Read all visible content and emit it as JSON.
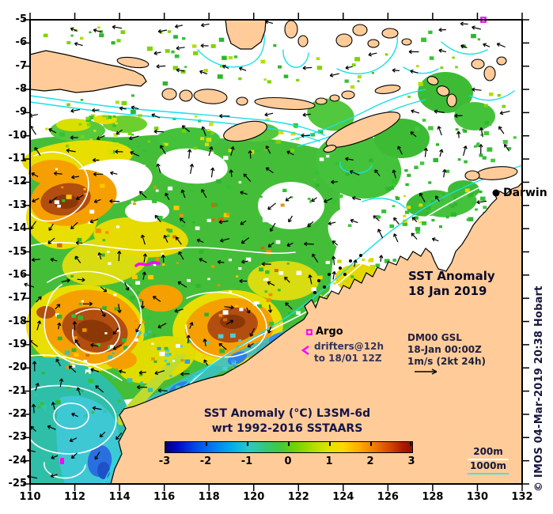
{
  "annotations": {
    "city": "Darwin",
    "title_line1": "SST Anomaly",
    "title_line2": "18 Jan 2019",
    "model_line1": "DM00 GSL",
    "model_line2": "18-Jan 00:00Z",
    "model_line3": "1m/s (2kt 24h)",
    "argo_label": "Argo",
    "drifters_line1": "drifters@12h",
    "drifters_line2": "to 18/01 12Z",
    "depth_200": "200m",
    "depth_1000": "1000m",
    "copyright": "© IMOS 04-Mar-2019 20:38 Hobart"
  },
  "colorbar": {
    "title": "SST Anomaly (°C) L3SM-6d",
    "subtitle": "wrt 1992-2016 SSTAARS",
    "tick_labels": [
      "-3",
      "-2",
      "-1",
      "0",
      "1",
      "2",
      "3"
    ],
    "min": -3,
    "max": 3,
    "units": "°C"
  },
  "axes": {
    "lat_labels": [
      "-5",
      "-6",
      "-7",
      "-8",
      "-9",
      "-10",
      "-11",
      "-12",
      "-13",
      "-14",
      "-15",
      "-16",
      "-17",
      "-18",
      "-19",
      "-20",
      "-21",
      "-22",
      "-23",
      "-24",
      "-25"
    ],
    "lon_labels": [
      "110",
      "112",
      "114",
      "116",
      "118",
      "120",
      "122",
      "124",
      "126",
      "128",
      "130",
      "132"
    ]
  },
  "map_colors": {
    "land": "#FFCC99",
    "marker_magenta": "#FF00FF",
    "bathy_contour_cyan": "#19E0E8",
    "ssh_contour_white": "#FFFFFF"
  }
}
